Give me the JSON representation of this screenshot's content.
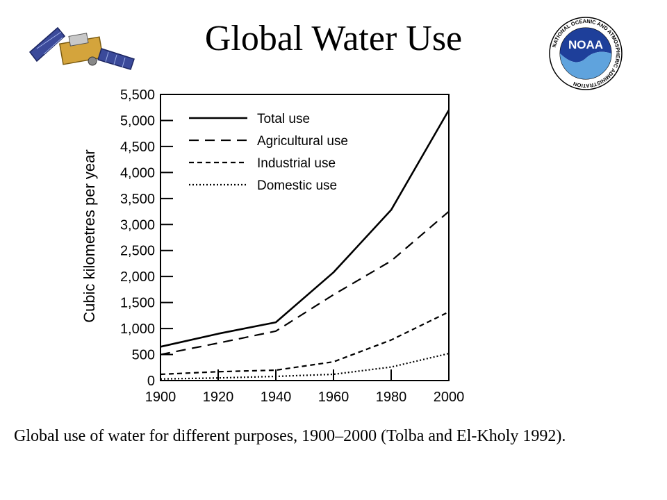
{
  "slide": {
    "title": "Global Water Use",
    "caption": "Global use of water for different purposes, 1900–2000 (Tolba and El-Kholy 1992).",
    "logo_text": "NOAA",
    "logo_ring_text": "NATIONAL OCEANIC AND ATMOSPHERIC ADMINISTRATION"
  },
  "chart_data": {
    "type": "line",
    "title": "",
    "xlabel": "",
    "ylabel": "Cubic kilometres per year",
    "x": [
      1900,
      1920,
      1940,
      1960,
      1980,
      2000
    ],
    "xlim": [
      1900,
      2000
    ],
    "ylim": [
      0,
      5500
    ],
    "x_ticks": [
      "1900",
      "1920",
      "1940",
      "1960",
      "1980",
      "2000"
    ],
    "y_ticks": [
      "0",
      "500",
      "1,000",
      "1,500",
      "2,000",
      "2,500",
      "3,000",
      "3,500",
      "4,000",
      "4,500",
      "5,000",
      "5,500"
    ],
    "grid": false,
    "legend_position": "top-left",
    "series": [
      {
        "name": "Total use",
        "style": "solid",
        "values": [
          650,
          900,
          1120,
          2080,
          3280,
          5200
        ]
      },
      {
        "name": "Agricultural use",
        "style": "long-dash",
        "values": [
          500,
          720,
          950,
          1650,
          2300,
          3250
        ]
      },
      {
        "name": "Industrial use",
        "style": "short-dash",
        "values": [
          120,
          170,
          200,
          360,
          780,
          1320
        ]
      },
      {
        "name": "Domestic use",
        "style": "dotted",
        "values": [
          30,
          50,
          80,
          120,
          260,
          520
        ]
      }
    ]
  }
}
